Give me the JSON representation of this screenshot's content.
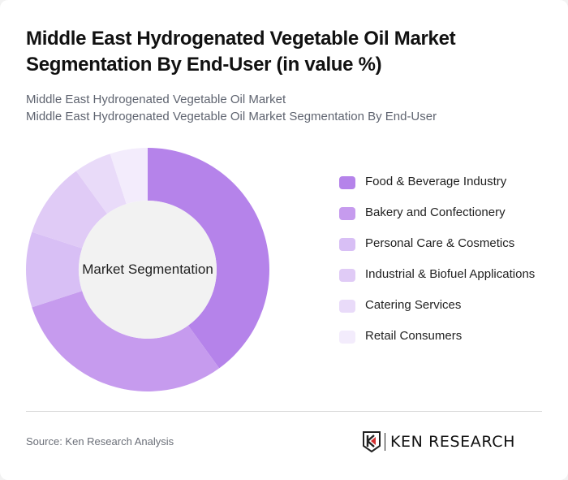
{
  "header": {
    "title": "Middle East Hydrogenated Vegetable Oil Market Segmentation By End-User (in value %)",
    "subtitle_line1": "Middle East Hydrogenated Vegetable Oil Market",
    "subtitle_line2": "Middle East Hydrogenated Vegetable Oil Market Segmentation By End-User"
  },
  "chart": {
    "center_label": "Market Segmentation"
  },
  "legend": {
    "items": [
      {
        "label": "Food & Beverage Industry",
        "color": "#b583ea"
      },
      {
        "label": "Bakery and Confectionery",
        "color": "#c69bee"
      },
      {
        "label": "Personal Care & Cosmetics",
        "color": "#d8bff5"
      },
      {
        "label": "Industrial & Biofuel Applications",
        "color": "#e0cbf6"
      },
      {
        "label": "Catering Services",
        "color": "#e9dbf9"
      },
      {
        "label": "Retail Consumers",
        "color": "#f3ecfc"
      }
    ]
  },
  "footer": {
    "source": "Source: Ken Research Analysis",
    "logo_text": "KEN RESEARCH"
  },
  "chart_data": {
    "type": "pie",
    "subtype": "donut",
    "title": "Middle East Hydrogenated Vegetable Oil Market Segmentation By End-User (in value %)",
    "center_label": "Market Segmentation",
    "categories": [
      "Food & Beverage Industry",
      "Bakery and Confectionery",
      "Personal Care & Cosmetics",
      "Industrial & Biofuel Applications",
      "Catering Services",
      "Retail Consumers"
    ],
    "values": [
      40,
      30,
      10,
      10,
      5,
      5
    ],
    "colors": [
      "#b583ea",
      "#c69bee",
      "#d8bff5",
      "#e0cbf6",
      "#e9dbf9",
      "#f3ecfc"
    ],
    "unit": "%",
    "legend_position": "right",
    "start_angle": "12 o'clock, clockwise"
  }
}
